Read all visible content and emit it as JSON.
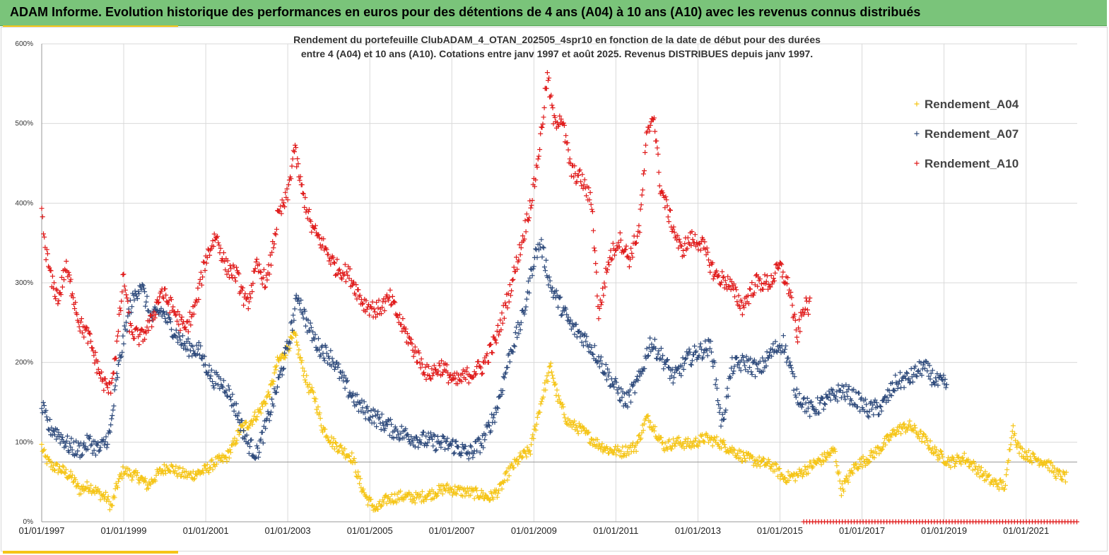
{
  "banner": {
    "title": "ADAM Informe. Evolution historique des performances en euros pour des détentions de 4 ans (A04) à 10 ans (A10) avec les revenus connus distribués"
  },
  "colors": {
    "banner_bg": "#7ac47a",
    "accent": "#f5c518",
    "A04": "#f5c518",
    "A07": "#2f4b7c",
    "A10": "#e01b1b"
  },
  "chart_data": {
    "type": "scatter",
    "marker": "plus",
    "title_lines": [
      "Rendement du portefeuille ClubADAM_4_OTAN_202505_4spr10  en fonction de la date de début pour des durées",
      "entre 4 (A04) et 10 ans (A10). Cotations entre janv 1997 et août 2025. Revenus DISTRIBUES depuis janv 1997."
    ],
    "ylim": [
      0,
      600
    ],
    "yticks": [
      "0%",
      "100%",
      "200%",
      "300%",
      "400%",
      "500%",
      "600%"
    ],
    "xlim": [
      "1997-01-01",
      "2022-04-01"
    ],
    "xticks": [
      "01/01/1997",
      "01/01/1999",
      "01/01/2001",
      "01/01/2003",
      "01/01/2005",
      "01/01/2007",
      "01/01/2009",
      "01/01/2011",
      "01/01/2013",
      "01/01/2015",
      "01/01/2017",
      "01/01/2019",
      "01/01/2021"
    ],
    "grid": true,
    "legend_position": "top-right",
    "reference_line": 75,
    "series": [
      {
        "name": "Rendement_A04",
        "color": "#f5c518",
        "points": [
          [
            "1997-01-01",
            95
          ],
          [
            "1997-02-01",
            80
          ],
          [
            "1997-04-01",
            70
          ],
          [
            "1997-07-01",
            65
          ],
          [
            "1997-10-01",
            55
          ],
          [
            "1997-12-01",
            40
          ],
          [
            "1998-03-01",
            45
          ],
          [
            "1998-06-01",
            35
          ],
          [
            "1998-08-01",
            30
          ],
          [
            "1998-09-15",
            18
          ],
          [
            "1998-11-01",
            45
          ],
          [
            "1999-01-01",
            65
          ],
          [
            "1999-03-01",
            60
          ],
          [
            "1999-06-01",
            55
          ],
          [
            "1999-08-01",
            45
          ],
          [
            "1999-11-01",
            60
          ],
          [
            "2000-02-01",
            70
          ],
          [
            "2000-05-01",
            62
          ],
          [
            "2000-08-01",
            58
          ],
          [
            "2000-10-01",
            60
          ],
          [
            "2001-01-01",
            65
          ],
          [
            "2001-04-01",
            75
          ],
          [
            "2001-07-01",
            80
          ],
          [
            "2001-09-01",
            95
          ],
          [
            "2001-11-01",
            115
          ],
          [
            "2002-02-01",
            125
          ],
          [
            "2002-05-01",
            140
          ],
          [
            "2002-08-01",
            165
          ],
          [
            "2002-10-01",
            200
          ],
          [
            "2002-12-01",
            210
          ],
          [
            "2003-03-01",
            235
          ],
          [
            "2003-05-01",
            200
          ],
          [
            "2003-07-01",
            170
          ],
          [
            "2003-09-01",
            155
          ],
          [
            "2003-11-01",
            120
          ],
          [
            "2004-02-01",
            100
          ],
          [
            "2004-05-01",
            90
          ],
          [
            "2004-08-01",
            80
          ],
          [
            "2004-10-01",
            50
          ],
          [
            "2004-12-01",
            30
          ],
          [
            "2005-03-01",
            15
          ],
          [
            "2005-06-01",
            28
          ],
          [
            "2005-10-01",
            32
          ],
          [
            "2006-03-01",
            30
          ],
          [
            "2006-07-01",
            35
          ],
          [
            "2006-11-01",
            42
          ],
          [
            "2007-04-01",
            38
          ],
          [
            "2007-09-01",
            35
          ],
          [
            "2007-12-01",
            30
          ],
          [
            "2008-03-01",
            40
          ],
          [
            "2008-06-01",
            65
          ],
          [
            "2008-09-01",
            80
          ],
          [
            "2008-12-01",
            90
          ],
          [
            "2009-02-01",
            130
          ],
          [
            "2009-04-01",
            165
          ],
          [
            "2009-06-01",
            195
          ],
          [
            "2009-08-01",
            155
          ],
          [
            "2009-11-01",
            125
          ],
          [
            "2010-03-01",
            115
          ],
          [
            "2010-07-01",
            100
          ],
          [
            "2010-11-01",
            90
          ],
          [
            "2011-03-01",
            88
          ],
          [
            "2011-07-01",
            95
          ],
          [
            "2011-10-01",
            130
          ],
          [
            "2011-12-01",
            120
          ],
          [
            "2012-03-01",
            95
          ],
          [
            "2012-07-01",
            100
          ],
          [
            "2012-11-01",
            97
          ],
          [
            "2013-03-01",
            105
          ],
          [
            "2013-07-01",
            100
          ],
          [
            "2013-11-01",
            90
          ],
          [
            "2014-03-01",
            80
          ],
          [
            "2014-07-01",
            75
          ],
          [
            "2014-11-01",
            70
          ],
          [
            "2015-02-01",
            55
          ],
          [
            "2015-06-01",
            58
          ],
          [
            "2015-10-01",
            70
          ],
          [
            "2016-02-01",
            80
          ],
          [
            "2016-05-01",
            90
          ],
          [
            "2016-07-01",
            40
          ],
          [
            "2016-11-01",
            70
          ],
          [
            "2017-03-01",
            80
          ],
          [
            "2017-07-01",
            95
          ],
          [
            "2017-11-01",
            115
          ],
          [
            "2018-03-01",
            120
          ],
          [
            "2018-07-01",
            105
          ],
          [
            "2018-11-01",
            85
          ],
          [
            "2019-03-01",
            75
          ],
          [
            "2019-07-01",
            80
          ],
          [
            "2019-11-01",
            65
          ],
          [
            "2020-03-01",
            50
          ],
          [
            "2020-07-01",
            45
          ],
          [
            "2020-09-01",
            120
          ],
          [
            "2020-11-01",
            90
          ],
          [
            "2021-03-01",
            80
          ],
          [
            "2021-07-01",
            75
          ],
          [
            "2021-10-01",
            60
          ],
          [
            "2022-01-01",
            55
          ]
        ]
      },
      {
        "name": "Rendement_A07",
        "color": "#2f4b7c",
        "points": [
          [
            "1997-01-01",
            145
          ],
          [
            "1997-03-01",
            120
          ],
          [
            "1997-06-01",
            110
          ],
          [
            "1997-09-01",
            95
          ],
          [
            "1997-12-01",
            90
          ],
          [
            "1998-03-01",
            100
          ],
          [
            "1998-06-01",
            90
          ],
          [
            "1998-09-01",
            110
          ],
          [
            "1998-11-01",
            180
          ],
          [
            "1999-01-01",
            230
          ],
          [
            "1999-03-01",
            270
          ],
          [
            "1999-06-01",
            300
          ],
          [
            "1999-09-01",
            255
          ],
          [
            "1999-12-01",
            265
          ],
          [
            "2000-03-01",
            245
          ],
          [
            "2000-07-01",
            220
          ],
          [
            "2000-11-01",
            215
          ],
          [
            "2001-03-01",
            180
          ],
          [
            "2001-07-01",
            170
          ],
          [
            "2001-10-01",
            140
          ],
          [
            "2002-01-01",
            100
          ],
          [
            "2002-04-01",
            85
          ],
          [
            "2002-07-01",
            125
          ],
          [
            "2002-10-01",
            170
          ],
          [
            "2003-01-01",
            220
          ],
          [
            "2003-04-01",
            285
          ],
          [
            "2003-07-01",
            245
          ],
          [
            "2003-10-01",
            220
          ],
          [
            "2004-02-01",
            205
          ],
          [
            "2004-06-01",
            170
          ],
          [
            "2004-10-01",
            145
          ],
          [
            "2005-03-01",
            130
          ],
          [
            "2005-08-01",
            115
          ],
          [
            "2006-02-01",
            105
          ],
          [
            "2006-08-01",
            100
          ],
          [
            "2007-02-01",
            95
          ],
          [
            "2007-06-01",
            85
          ],
          [
            "2007-10-01",
            100
          ],
          [
            "2008-02-01",
            140
          ],
          [
            "2008-06-01",
            210
          ],
          [
            "2008-10-01",
            260
          ],
          [
            "2009-01-01",
            330
          ],
          [
            "2009-03-01",
            350
          ],
          [
            "2009-06-01",
            295
          ],
          [
            "2009-09-01",
            270
          ],
          [
            "2009-12-01",
            245
          ],
          [
            "2010-04-01",
            230
          ],
          [
            "2010-08-01",
            205
          ],
          [
            "2010-12-01",
            175
          ],
          [
            "2011-04-01",
            150
          ],
          [
            "2011-08-01",
            180
          ],
          [
            "2011-11-01",
            225
          ],
          [
            "2012-02-01",
            210
          ],
          [
            "2012-06-01",
            180
          ],
          [
            "2012-10-01",
            205
          ],
          [
            "2013-02-01",
            215
          ],
          [
            "2013-05-01",
            220
          ],
          [
            "2013-08-01",
            120
          ],
          [
            "2013-11-01",
            195
          ],
          [
            "2014-03-01",
            200
          ],
          [
            "2014-07-01",
            190
          ],
          [
            "2014-11-01",
            215
          ],
          [
            "2015-02-01",
            225
          ],
          [
            "2015-06-01",
            160
          ],
          [
            "2015-10-01",
            140
          ],
          [
            "2016-02-01",
            150
          ],
          [
            "2016-07-01",
            165
          ],
          [
            "2016-11-01",
            155
          ],
          [
            "2017-03-01",
            140
          ],
          [
            "2017-07-01",
            145
          ],
          [
            "2017-11-01",
            175
          ],
          [
            "2018-03-01",
            180
          ],
          [
            "2018-07-01",
            195
          ],
          [
            "2018-11-01",
            175
          ],
          [
            "2019-02-01",
            172
          ]
        ]
      },
      {
        "name": "Rendement_A10",
        "color": "#e01b1b",
        "points": [
          [
            "1997-01-01",
            385
          ],
          [
            "1997-02-01",
            345
          ],
          [
            "1997-04-01",
            300
          ],
          [
            "1997-06-01",
            280
          ],
          [
            "1997-08-01",
            320
          ],
          [
            "1997-10-01",
            290
          ],
          [
            "1997-12-01",
            250
          ],
          [
            "1998-03-01",
            230
          ],
          [
            "1998-05-01",
            200
          ],
          [
            "1998-07-01",
            175
          ],
          [
            "1998-09-01",
            165
          ],
          [
            "1998-11-01",
            220
          ],
          [
            "1999-01-01",
            310
          ],
          [
            "1999-03-01",
            240
          ],
          [
            "1999-06-01",
            230
          ],
          [
            "1999-09-01",
            250
          ],
          [
            "1999-12-01",
            290
          ],
          [
            "2000-03-01",
            270
          ],
          [
            "2000-07-01",
            240
          ],
          [
            "2000-10-01",
            270
          ],
          [
            "2001-01-01",
            330
          ],
          [
            "2001-04-01",
            360
          ],
          [
            "2001-07-01",
            320
          ],
          [
            "2001-10-01",
            310
          ],
          [
            "2002-01-01",
            270
          ],
          [
            "2002-04-01",
            320
          ],
          [
            "2002-07-01",
            300
          ],
          [
            "2002-10-01",
            380
          ],
          [
            "2003-01-01",
            410
          ],
          [
            "2003-03-01",
            470
          ],
          [
            "2003-05-01",
            420
          ],
          [
            "2003-08-01",
            370
          ],
          [
            "2003-11-01",
            350
          ],
          [
            "2004-03-01",
            320
          ],
          [
            "2004-07-01",
            310
          ],
          [
            "2004-11-01",
            275
          ],
          [
            "2005-03-01",
            265
          ],
          [
            "2005-07-01",
            280
          ],
          [
            "2005-10-01",
            250
          ],
          [
            "2006-02-01",
            215
          ],
          [
            "2006-06-01",
            185
          ],
          [
            "2006-10-01",
            195
          ],
          [
            "2007-02-01",
            175
          ],
          [
            "2007-06-01",
            185
          ],
          [
            "2007-10-01",
            195
          ],
          [
            "2008-02-01",
            230
          ],
          [
            "2008-06-01",
            290
          ],
          [
            "2008-10-01",
            360
          ],
          [
            "2009-01-01",
            420
          ],
          [
            "2009-03-01",
            480
          ],
          [
            "2009-05-01",
            560
          ],
          [
            "2009-07-01",
            500
          ],
          [
            "2009-09-01",
            510
          ],
          [
            "2009-12-01",
            440
          ],
          [
            "2010-03-01",
            430
          ],
          [
            "2010-06-01",
            400
          ],
          [
            "2010-08-01",
            260
          ],
          [
            "2010-11-01",
            330
          ],
          [
            "2011-02-01",
            355
          ],
          [
            "2011-05-01",
            330
          ],
          [
            "2011-08-01",
            370
          ],
          [
            "2011-10-01",
            480
          ],
          [
            "2011-12-01",
            515
          ],
          [
            "2012-02-01",
            420
          ],
          [
            "2012-05-01",
            380
          ],
          [
            "2012-08-01",
            340
          ],
          [
            "2012-11-01",
            355
          ],
          [
            "2013-02-01",
            350
          ],
          [
            "2013-06-01",
            310
          ],
          [
            "2013-10-01",
            300
          ],
          [
            "2014-02-01",
            270
          ],
          [
            "2014-06-01",
            300
          ],
          [
            "2014-10-01",
            300
          ],
          [
            "2015-01-01",
            320
          ],
          [
            "2015-04-01",
            290
          ],
          [
            "2015-06-01",
            230
          ],
          [
            "2015-08-01",
            270
          ],
          [
            "2015-10-01",
            270
          ]
        ]
      }
    ],
    "baseline_markers": {
      "color": "#e01b1b",
      "from": "2015-08-01",
      "to": "2022-04-01",
      "value": 0
    }
  }
}
